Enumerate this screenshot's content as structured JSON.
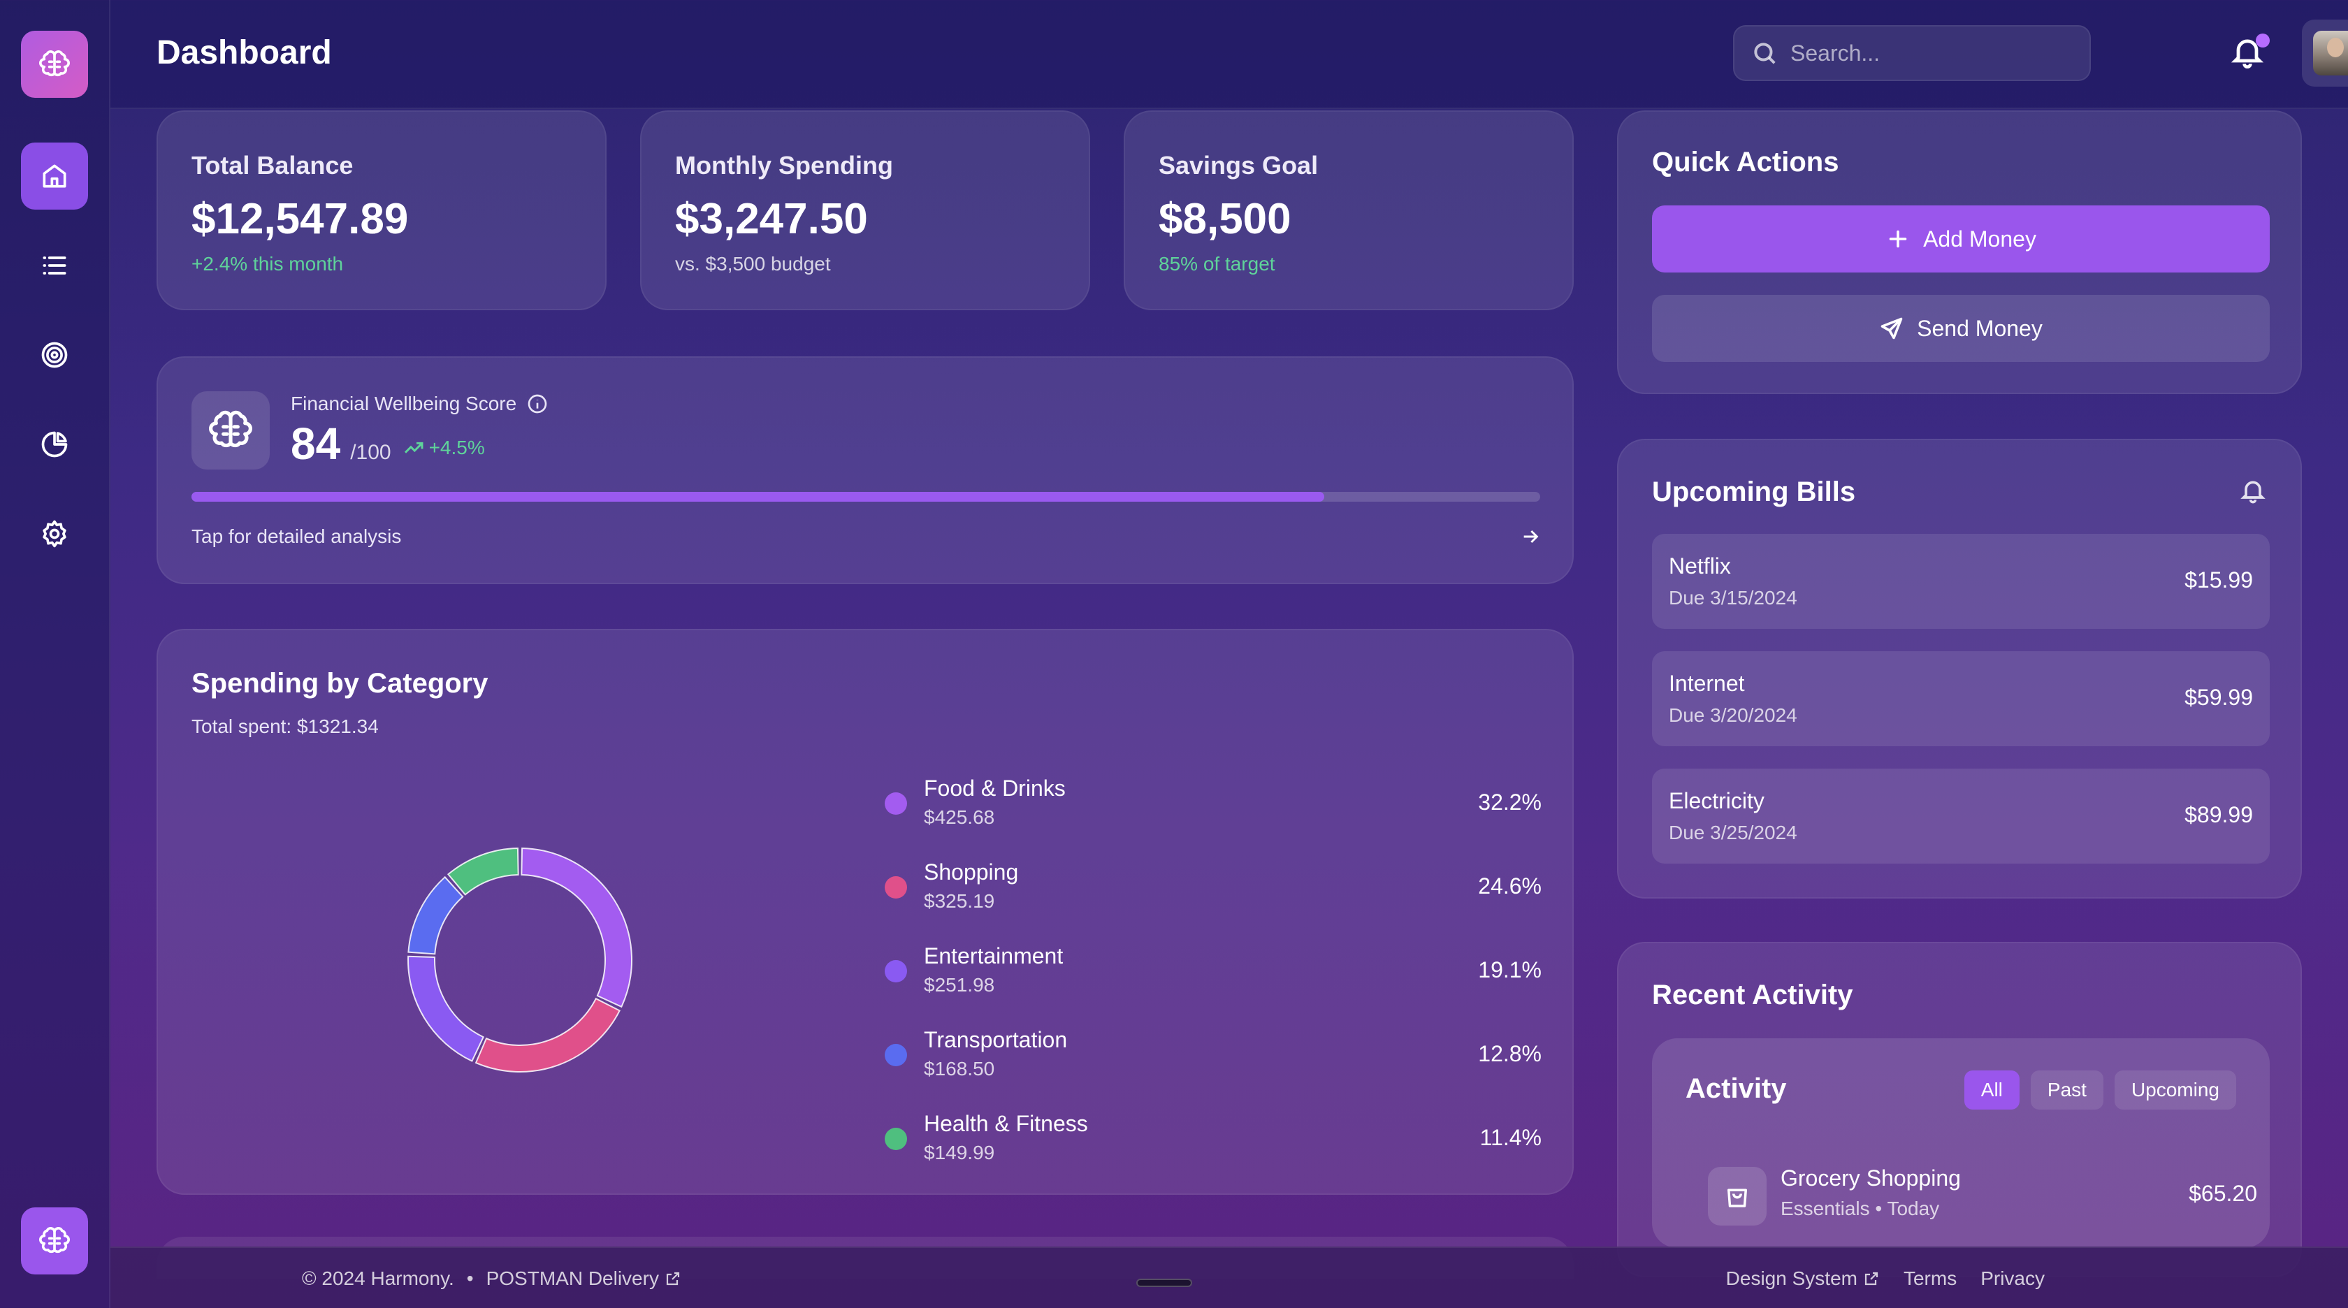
{
  "header": {
    "title": "Dashboard",
    "search_placeholder": "Search..."
  },
  "sidebar": {
    "items": [
      "home-icon",
      "list-icon",
      "target-icon",
      "pie-chart-icon",
      "gear-icon"
    ]
  },
  "stats": [
    {
      "label": "Total Balance",
      "value": "$12,547.89",
      "sub": "+2.4% this month"
    },
    {
      "label": "Monthly Spending",
      "value": "$3,247.50",
      "sub": "vs. $3,500 budget"
    },
    {
      "label": "Savings Goal",
      "value": "$8,500",
      "sub": "85% of target"
    }
  ],
  "wellbeing": {
    "title": "Financial Wellbeing Score",
    "score": "84",
    "out_of": "/100",
    "delta": "+4.5%",
    "progress": 0.84,
    "tap_text": "Tap for detailed analysis"
  },
  "spending": {
    "title": "Spending by Category",
    "total": "Total spent: $1321.34",
    "categories": [
      {
        "name": "Food & Drinks",
        "amount": "$425.68",
        "pct": "32.2%",
        "share": 32.2,
        "color": "#a35cf0"
      },
      {
        "name": "Shopping",
        "amount": "$325.19",
        "pct": "24.6%",
        "share": 24.6,
        "color": "#e0508a"
      },
      {
        "name": "Entertainment",
        "amount": "$251.98",
        "pct": "19.1%",
        "share": 19.1,
        "color": "#8a5af2"
      },
      {
        "name": "Transportation",
        "amount": "$168.50",
        "pct": "12.8%",
        "share": 12.8,
        "color": "#5a6cf0"
      },
      {
        "name": "Health & Fitness",
        "amount": "$149.99",
        "pct": "11.4%",
        "share": 11.4,
        "color": "#4fbf7f"
      }
    ]
  },
  "quick_actions": {
    "title": "Quick Actions",
    "add_label": "Add Money",
    "send_label": "Send Money"
  },
  "bills": {
    "title": "Upcoming Bills",
    "items": [
      {
        "name": "Netflix",
        "due": "Due 3/15/2024",
        "amount": "$15.99"
      },
      {
        "name": "Internet",
        "due": "Due 3/20/2024",
        "amount": "$59.99"
      },
      {
        "name": "Electricity",
        "due": "Due 3/25/2024",
        "amount": "$89.99"
      }
    ]
  },
  "recent": {
    "title": "Recent Activity",
    "card_title": "Activity",
    "filters": [
      "All",
      "Past",
      "Upcoming"
    ],
    "item": {
      "name": "Grocery Shopping",
      "meta": "Essentials • Today",
      "amount": "$65.20"
    }
  },
  "footer": {
    "copyright": "© 2024 Harmony.",
    "separator": "•",
    "partner": "POSTMAN Delivery",
    "design_system": "Design System",
    "terms": "Terms",
    "privacy": "Privacy"
  }
}
